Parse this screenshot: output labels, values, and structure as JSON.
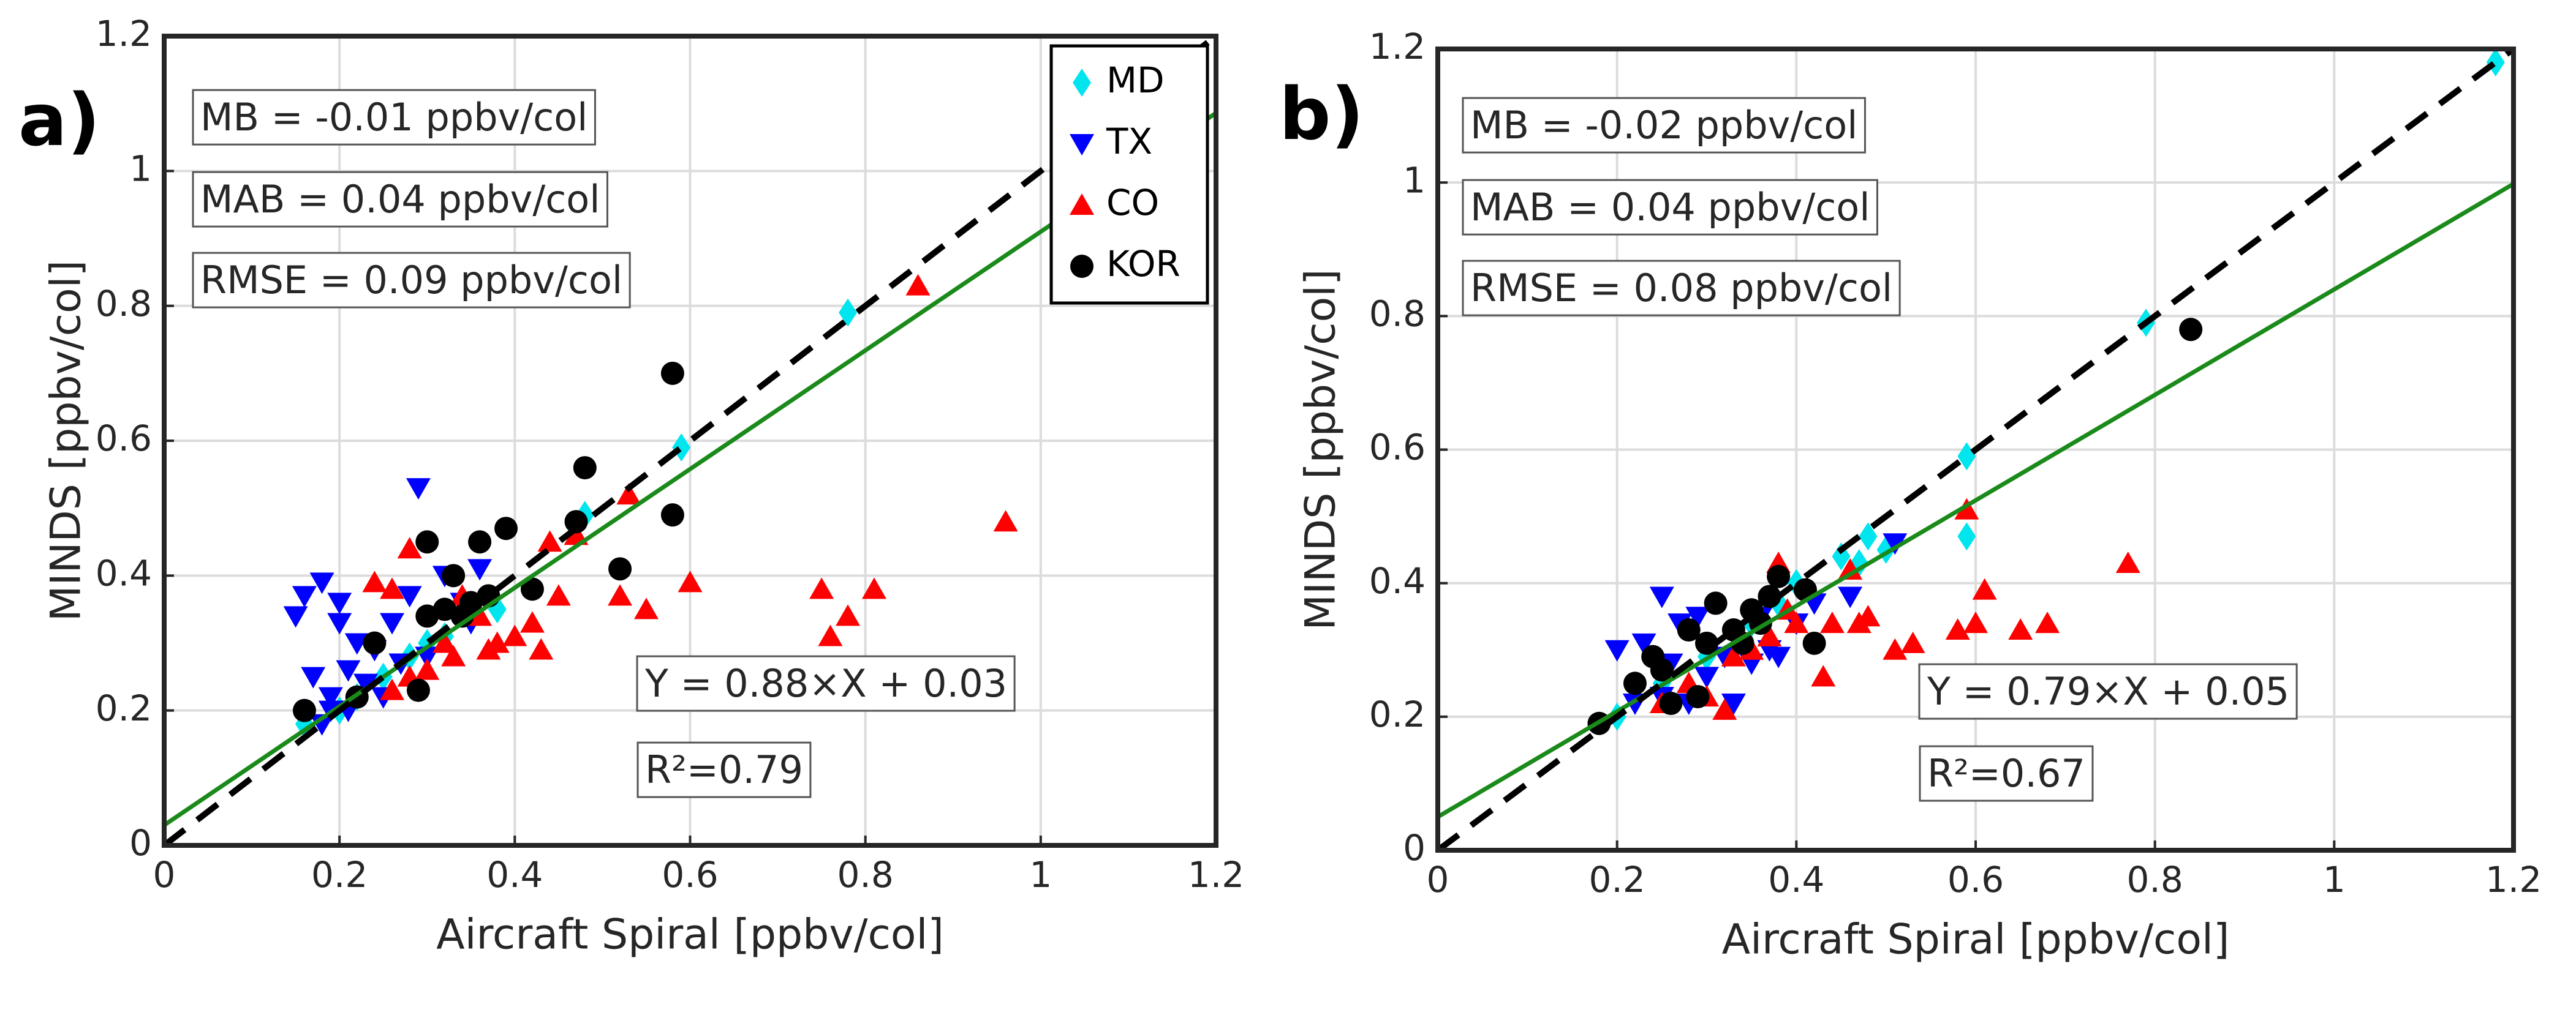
{
  "chart_data": [
    {
      "type": "scatter",
      "panel_label": "a)",
      "xlabel": "Aircraft Spiral [ppbv/col]",
      "ylabel": "MINDS [ppbv/col]",
      "xlim": [
        0,
        1.2
      ],
      "ylim": [
        0,
        1.2
      ],
      "xticks": [
        0,
        0.2,
        0.4,
        0.6,
        0.8,
        1,
        1.2
      ],
      "yticks": [
        0,
        0.2,
        0.4,
        0.6,
        0.8,
        1,
        1.2
      ],
      "grid": true,
      "legend": "northeast",
      "annotations": [
        {
          "text": "MB = -0.01 ppbv/col",
          "color": "#0000ff"
        },
        {
          "text": "MAB = 0.04 ppbv/col",
          "color": "#0000ff"
        },
        {
          "text": "RMSE = 0.09 ppbv/col",
          "color": "#0000ff"
        },
        {
          "text": "Y = 0.88×X + 0.03",
          "color": "#007a00"
        },
        {
          "text": "R²=0.79",
          "color": "#007a00"
        }
      ],
      "fit_line": {
        "slope": 0.88,
        "intercept": 0.03,
        "color": "#1a8a1a"
      },
      "reference_line": {
        "slope": 1,
        "intercept": 0,
        "color": "#000000"
      },
      "series": [
        {
          "name": "MD",
          "color": "#00e5ee",
          "marker": "diamond",
          "x": [
            0.78,
            0.59,
            0.16,
            0.2,
            0.22,
            0.25,
            0.28,
            0.32,
            0.35,
            0.38,
            0.48,
            0.3
          ],
          "values": [
            0.79,
            0.59,
            0.18,
            0.2,
            0.22,
            0.25,
            0.28,
            0.31,
            0.34,
            0.35,
            0.49,
            0.3
          ]
        },
        {
          "name": "TX",
          "color": "#0000ff",
          "marker": "triangle-down",
          "x": [
            0.15,
            0.16,
            0.18,
            0.2,
            0.2,
            0.22,
            0.24,
            0.17,
            0.19,
            0.18,
            0.21,
            0.23,
            0.26,
            0.28,
            0.29,
            0.32,
            0.34,
            0.36,
            0.35,
            0.3,
            0.27,
            0.25,
            0.21,
            0.19
          ],
          "values": [
            0.34,
            0.37,
            0.39,
            0.36,
            0.33,
            0.3,
            0.29,
            0.25,
            0.22,
            0.18,
            0.2,
            0.24,
            0.33,
            0.37,
            0.53,
            0.4,
            0.36,
            0.41,
            0.33,
            0.28,
            0.27,
            0.22,
            0.26,
            0.2
          ]
        },
        {
          "name": "CO",
          "color": "#ff0000",
          "marker": "triangle-up",
          "x": [
            0.86,
            0.96,
            0.75,
            0.76,
            0.78,
            0.81,
            0.6,
            0.55,
            0.52,
            0.53,
            0.47,
            0.44,
            0.45,
            0.42,
            0.4,
            0.38,
            0.36,
            0.34,
            0.32,
            0.3,
            0.28,
            0.26,
            0.24,
            0.26,
            0.28,
            0.33,
            0.43,
            0.37
          ],
          "values": [
            0.83,
            0.48,
            0.38,
            0.31,
            0.34,
            0.38,
            0.39,
            0.35,
            0.37,
            0.52,
            0.46,
            0.45,
            0.37,
            0.33,
            0.31,
            0.3,
            0.34,
            0.37,
            0.3,
            0.26,
            0.25,
            0.23,
            0.39,
            0.38,
            0.44,
            0.28,
            0.29,
            0.29
          ]
        },
        {
          "name": "KOR",
          "color": "#000000",
          "marker": "circle",
          "x": [
            0.16,
            0.22,
            0.24,
            0.29,
            0.3,
            0.3,
            0.33,
            0.32,
            0.35,
            0.36,
            0.37,
            0.39,
            0.42,
            0.47,
            0.48,
            0.52,
            0.58,
            0.58,
            0.34
          ],
          "values": [
            0.2,
            0.22,
            0.3,
            0.23,
            0.34,
            0.45,
            0.4,
            0.35,
            0.36,
            0.45,
            0.37,
            0.47,
            0.38,
            0.48,
            0.56,
            0.41,
            0.49,
            0.7,
            0.34
          ]
        }
      ]
    },
    {
      "type": "scatter",
      "panel_label": "b)",
      "xlabel": "Aircraft Spiral [ppbv/col]",
      "ylabel": "MINDS [ppbv/col]",
      "xlim": [
        0,
        1.2
      ],
      "ylim": [
        0,
        1.2
      ],
      "xticks": [
        0,
        0.2,
        0.4,
        0.6,
        0.8,
        1,
        1.2
      ],
      "yticks": [
        0,
        0.2,
        0.4,
        0.6,
        0.8,
        1,
        1.2
      ],
      "grid": true,
      "legend": false,
      "annotations": [
        {
          "text": "MB = -0.02 ppbv/col",
          "color": "#0000ff"
        },
        {
          "text": "MAB = 0.04 ppbv/col",
          "color": "#0000ff"
        },
        {
          "text": "RMSE = 0.08 ppbv/col",
          "color": "#0000ff"
        },
        {
          "text": "Y = 0.79×X + 0.05",
          "color": "#007a00"
        },
        {
          "text": "R²=0.67",
          "color": "#007a00"
        }
      ],
      "fit_line": {
        "slope": 0.79,
        "intercept": 0.05,
        "color": "#1a8a1a"
      },
      "reference_line": {
        "slope": 1,
        "intercept": 0,
        "color": "#000000"
      },
      "series": [
        {
          "color": "#00e5ee",
          "marker": "diamond",
          "x": [
            1.18,
            0.79,
            0.59,
            0.59,
            0.5,
            0.48,
            0.47,
            0.2,
            0.25,
            0.3,
            0.35,
            0.38,
            0.4,
            0.45
          ],
          "values": [
            1.18,
            0.79,
            0.59,
            0.47,
            0.45,
            0.47,
            0.43,
            0.2,
            0.25,
            0.29,
            0.34,
            0.37,
            0.4,
            0.44
          ]
        },
        {
          "color": "#0000ff",
          "marker": "triangle-down",
          "x": [
            0.2,
            0.23,
            0.25,
            0.27,
            0.22,
            0.25,
            0.28,
            0.3,
            0.33,
            0.35,
            0.37,
            0.4,
            0.42,
            0.46,
            0.51,
            0.29,
            0.26,
            0.32,
            0.36,
            0.38
          ],
          "values": [
            0.3,
            0.31,
            0.38,
            0.34,
            0.22,
            0.23,
            0.22,
            0.26,
            0.22,
            0.28,
            0.3,
            0.34,
            0.37,
            0.38,
            0.46,
            0.35,
            0.28,
            0.29,
            0.35,
            0.29
          ]
        },
        {
          "color": "#ff0000",
          "marker": "triangle-up",
          "x": [
            0.77,
            0.68,
            0.65,
            0.61,
            0.6,
            0.58,
            0.59,
            0.53,
            0.51,
            0.48,
            0.47,
            0.44,
            0.43,
            0.46,
            0.38,
            0.4,
            0.37,
            0.35,
            0.33,
            0.3,
            0.32,
            0.28,
            0.25,
            0.39
          ],
          "values": [
            0.43,
            0.34,
            0.33,
            0.39,
            0.34,
            0.33,
            0.51,
            0.31,
            0.3,
            0.35,
            0.34,
            0.34,
            0.26,
            0.42,
            0.43,
            0.34,
            0.32,
            0.3,
            0.29,
            0.23,
            0.21,
            0.25,
            0.22,
            0.36
          ]
        },
        {
          "color": "#000000",
          "marker": "circle",
          "x": [
            0.18,
            0.22,
            0.24,
            0.25,
            0.26,
            0.28,
            0.29,
            0.3,
            0.31,
            0.33,
            0.34,
            0.35,
            0.37,
            0.38,
            0.41,
            0.42,
            0.84,
            0.36
          ],
          "values": [
            0.19,
            0.25,
            0.29,
            0.27,
            0.22,
            0.33,
            0.23,
            0.31,
            0.37,
            0.33,
            0.31,
            0.36,
            0.38,
            0.41,
            0.39,
            0.31,
            0.78,
            0.34
          ]
        }
      ]
    }
  ]
}
